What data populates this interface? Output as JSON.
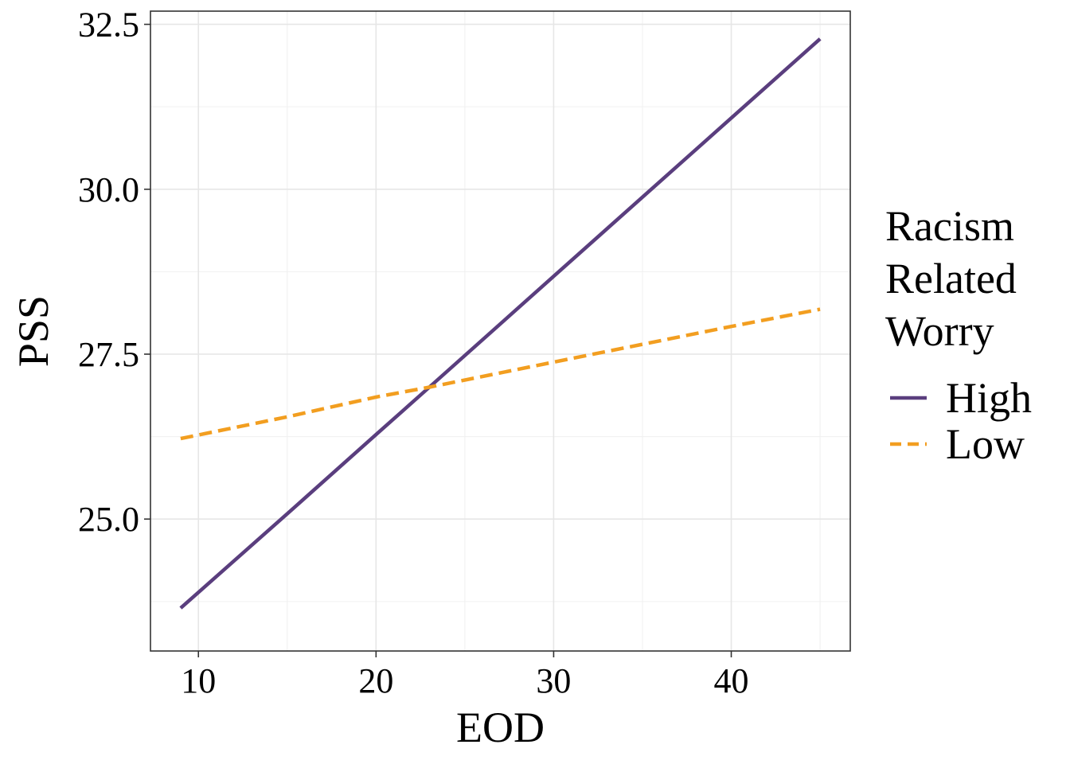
{
  "chart_data": {
    "type": "line",
    "xlabel": "EOD",
    "ylabel": "PSS",
    "xlim": [
      7.3,
      46.7
    ],
    "ylim": [
      23.0,
      32.7
    ],
    "x_ticks": [
      10,
      20,
      30,
      40
    ],
    "y_ticks": [
      25.0,
      27.5,
      30.0,
      32.5
    ],
    "x_tick_labels": [
      "10",
      "20",
      "30",
      "40"
    ],
    "y_tick_labels": [
      "25.0",
      "27.5",
      "30.0",
      "32.5"
    ],
    "grid": true,
    "legend": {
      "title_lines": [
        "Racism",
        "Related",
        "Worry"
      ],
      "placement": "right"
    },
    "series": [
      {
        "name": "High",
        "color": "#5a3e7e",
        "dash": "solid",
        "x": [
          9,
          15,
          20,
          23,
          30,
          35,
          40,
          45
        ],
        "y": [
          23.65,
          25.08,
          26.28,
          27.0,
          28.68,
          29.88,
          31.08,
          32.28
        ]
      },
      {
        "name": "Low",
        "color": "#f29e20",
        "dash": "dashed",
        "x": [
          9,
          15,
          20,
          23,
          30,
          35,
          40,
          45
        ],
        "y": [
          26.22,
          26.55,
          26.85,
          27.0,
          27.38,
          27.65,
          27.92,
          28.18
        ]
      }
    ]
  }
}
